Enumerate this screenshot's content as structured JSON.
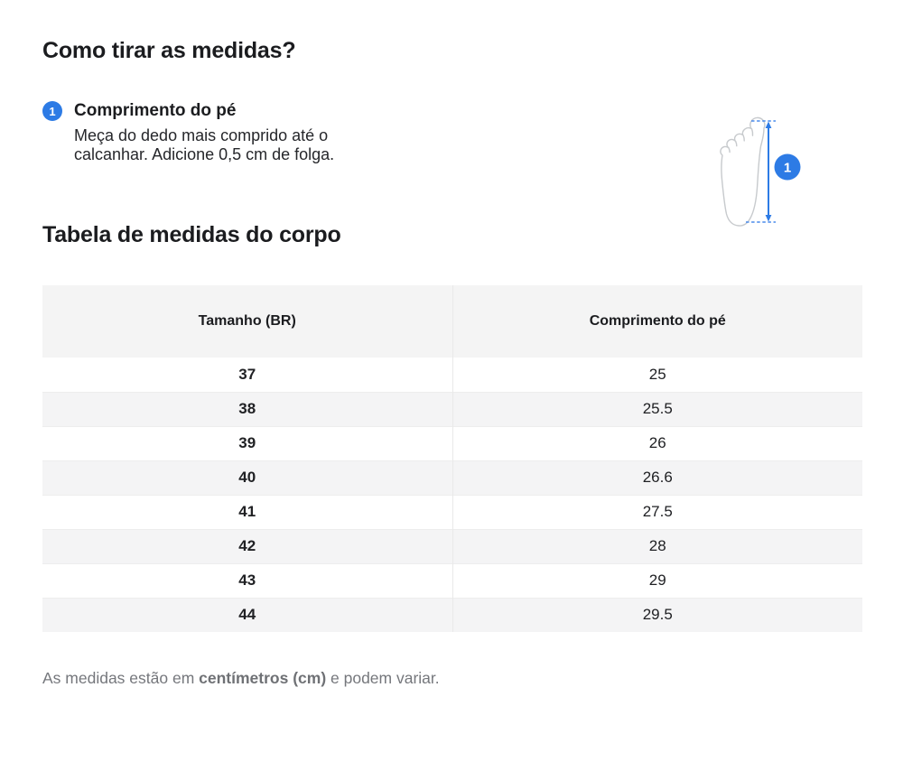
{
  "page": {
    "title": "Como tirar as medidas?",
    "section_title": "Tabela de medidas do corpo"
  },
  "instruction": {
    "step_number": "1",
    "label": "Comprimento do pé",
    "description": "Meça do dedo mais comprido até o calcanhar. Adicione 0,5 cm de folga."
  },
  "diagram": {
    "icon": "foot-outline-with-measure-arrow",
    "marker_number": "1"
  },
  "table": {
    "columns": [
      "Tamanho (BR)",
      "Comprimento do pé"
    ],
    "rows": [
      {
        "size": "37",
        "length": "25"
      },
      {
        "size": "38",
        "length": "25.5"
      },
      {
        "size": "39",
        "length": "26"
      },
      {
        "size": "40",
        "length": "26.6"
      },
      {
        "size": "41",
        "length": "27.5"
      },
      {
        "size": "42",
        "length": "28"
      },
      {
        "size": "43",
        "length": "29"
      },
      {
        "size": "44",
        "length": "29.5"
      }
    ]
  },
  "footnote": {
    "prefix": "As medidas estão em ",
    "bold": "centímetros (cm)",
    "suffix": " e podem variar."
  },
  "colors": {
    "accent_blue": "#2d7be5",
    "dashed_blue": "#4a8bec",
    "foot_outline_gray": "#c7cacd",
    "header_bg": "#f4f4f4",
    "row_alt_bg": "#f4f4f5",
    "text_dark": "#1b1c1f",
    "text_gray": "#75777c"
  }
}
